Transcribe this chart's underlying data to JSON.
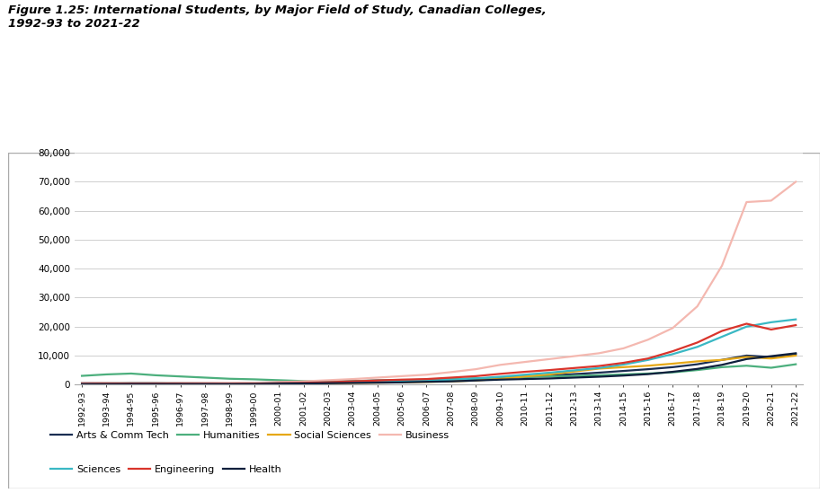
{
  "title": "Figure 1.25: International Students, by Major Field of Study, Canadian Colleges,\n1992-93 to 2021-22",
  "years": [
    "1992-93",
    "1993-94",
    "1994-95",
    "1995-96",
    "1996-97",
    "1997-98",
    "1998-99",
    "1999-00",
    "2000-01",
    "2001-02",
    "2002-03",
    "2003-04",
    "2004-05",
    "2005-06",
    "2006-07",
    "2007-08",
    "2008-09",
    "2009-10",
    "2010-11",
    "2011-12",
    "2012-13",
    "2013-14",
    "2014-15",
    "2015-16",
    "2016-17",
    "2017-18",
    "2018-19",
    "2019-20",
    "2020-21",
    "2021-22"
  ],
  "series": {
    "Arts & Comm Tech": [
      500,
      550,
      600,
      550,
      500,
      450,
      400,
      450,
      700,
      800,
      1000,
      1200,
      1400,
      1500,
      1600,
      1800,
      2000,
      2300,
      2700,
      3100,
      3600,
      4100,
      4700,
      5300,
      6000,
      7000,
      8500,
      10000,
      9500,
      10500
    ],
    "Humanities": [
      3000,
      3500,
      3800,
      3200,
      2800,
      2400,
      2000,
      1800,
      1500,
      1200,
      1100,
      1200,
      1400,
      1500,
      1700,
      1900,
      2100,
      2400,
      2600,
      2800,
      3000,
      3200,
      3500,
      3800,
      4200,
      5000,
      6000,
      6500,
      5800,
      7000
    ],
    "Social Sciences": [
      200,
      250,
      280,
      270,
      230,
      200,
      190,
      200,
      300,
      350,
      450,
      550,
      650,
      750,
      900,
      1100,
      1400,
      2000,
      2800,
      3500,
      4500,
      5500,
      6000,
      6500,
      7200,
      8000,
      8500,
      9500,
      9000,
      10000
    ],
    "Business": [
      500,
      600,
      700,
      700,
      600,
      580,
      560,
      650,
      900,
      1100,
      1500,
      1900,
      2400,
      2900,
      3400,
      4300,
      5300,
      6800,
      7800,
      8800,
      9800,
      10800,
      12500,
      15500,
      19500,
      27000,
      41000,
      63000,
      63500,
      70000
    ],
    "Sciences": [
      300,
      380,
      460,
      450,
      380,
      360,
      330,
      380,
      550,
      650,
      750,
      850,
      950,
      1100,
      1400,
      1700,
      2100,
      2700,
      3400,
      4100,
      4900,
      5700,
      6900,
      8500,
      10500,
      13000,
      16500,
      20000,
      21500,
      22500
    ],
    "Engineering": [
      250,
      300,
      350,
      350,
      300,
      270,
      260,
      300,
      500,
      600,
      800,
      1100,
      1400,
      1700,
      1900,
      2400,
      2900,
      3700,
      4400,
      5000,
      5700,
      6400,
      7500,
      9000,
      11500,
      14500,
      18500,
      21000,
      19000,
      20500
    ],
    "Health": [
      100,
      130,
      170,
      170,
      140,
      130,
      130,
      170,
      270,
      370,
      450,
      550,
      650,
      750,
      950,
      1100,
      1400,
      1700,
      1900,
      2100,
      2400,
      2700,
      3100,
      3600,
      4400,
      5400,
      6800,
      8800,
      9800,
      10800
    ]
  },
  "colors": {
    "Arts & Comm Tech": "#1a2e52",
    "Humanities": "#4caf7d",
    "Social Sciences": "#e6a817",
    "Business": "#f4b8b0",
    "Sciences": "#3ab8c4",
    "Engineering": "#d9342b",
    "Health": "#0d1f3c"
  },
  "legend_order": [
    "Arts & Comm Tech",
    "Humanities",
    "Social Sciences",
    "Business",
    "Sciences",
    "Engineering",
    "Health"
  ],
  "legend_ncol_row1": 4,
  "ylim": [
    0,
    80000
  ],
  "yticks": [
    0,
    10000,
    20000,
    30000,
    40000,
    50000,
    60000,
    70000,
    80000
  ],
  "background_color": "#ffffff",
  "plot_bg_color": "#ffffff",
  "grid_color": "#c8c8c8",
  "border_color": "#aaaaaa"
}
